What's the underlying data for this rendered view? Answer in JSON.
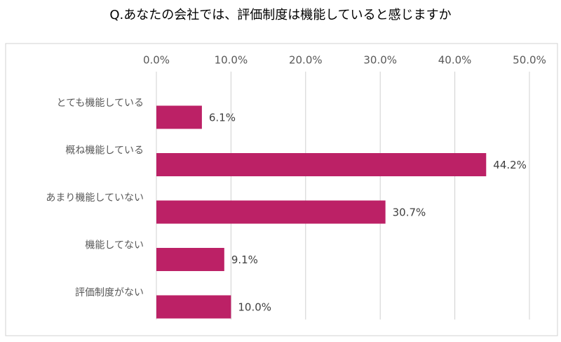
{
  "chart_data": {
    "type": "bar",
    "title": "Q.あなたの会社では、評価制度は機能していると感じますか",
    "categories": [
      "とても機能している",
      "概ね機能している",
      "あまり機能していない",
      "機能してない",
      "評価制度がない"
    ],
    "values": [
      6.1,
      44.2,
      30.7,
      9.1,
      10.0
    ],
    "value_labels": [
      "6.1%",
      "44.2%",
      "30.7%",
      "9.1%",
      "10.0%"
    ],
    "color": "#bc2166",
    "xlim": [
      0,
      50
    ],
    "xticks": [
      {
        "value": 0,
        "label": "0.0%"
      },
      {
        "value": 10,
        "label": "10.0%"
      },
      {
        "value": 20,
        "label": "20.0%"
      },
      {
        "value": 30,
        "label": "30.0%"
      },
      {
        "value": 40,
        "label": "40.0%"
      },
      {
        "value": 50,
        "label": "50.0%"
      }
    ],
    "grid": true
  }
}
